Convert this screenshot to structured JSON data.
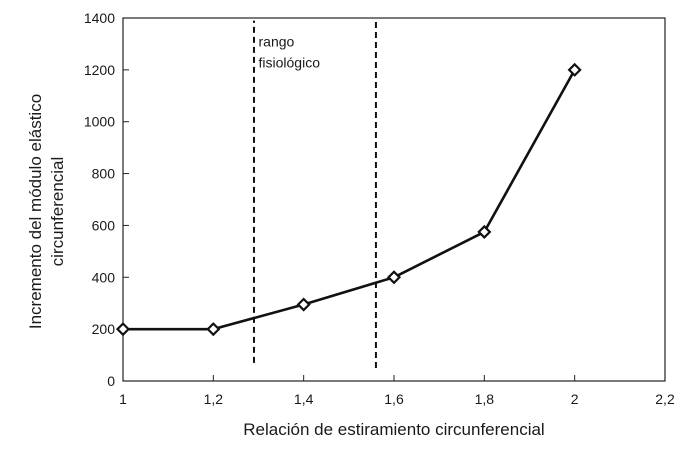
{
  "chart_data": {
    "type": "line",
    "title": "",
    "xlabel": "Relación de estiramiento circunferencial",
    "ylabel_lines": [
      "Incremento del módulo elástico",
      "circunferencial"
    ],
    "xlim": [
      1,
      2.2
    ],
    "ylim": [
      0,
      1400
    ],
    "x_ticks": [
      1,
      1.2,
      1.4,
      1.6,
      1.8,
      2,
      2.2
    ],
    "x_tick_labels": [
      "1",
      "1,2",
      "1,4",
      "1,6",
      "1,8",
      "2",
      "2,2"
    ],
    "y_ticks": [
      0,
      200,
      400,
      600,
      800,
      1000,
      1200,
      1400
    ],
    "y_tick_labels": [
      "0",
      "200",
      "400",
      "600",
      "800",
      "1000",
      "1200",
      "1400"
    ],
    "grid": false,
    "legend": "none",
    "series": [
      {
        "x": [
          1.0,
          1.2,
          1.4,
          1.6,
          1.8,
          2.0
        ],
        "y": [
          200,
          200,
          295,
          400,
          575,
          1200
        ],
        "marker": "diamond",
        "color": "#111111"
      }
    ],
    "reference_lines": [
      {
        "x": 1.29,
        "y_from": 70,
        "y_to": 1390,
        "style": "dashed"
      },
      {
        "x": 1.56,
        "y_from": 50,
        "y_to": 1390,
        "style": "dashed"
      }
    ],
    "annotation": {
      "lines": [
        "rango",
        "fisiológico"
      ],
      "x": 1.3,
      "y": 1290
    }
  }
}
